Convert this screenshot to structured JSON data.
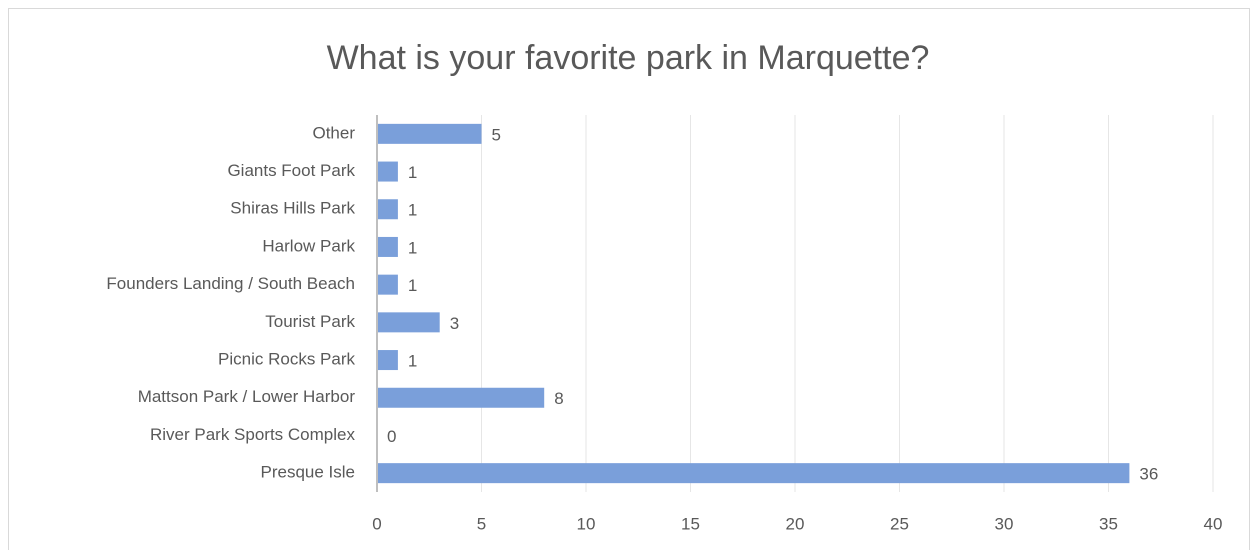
{
  "chart_data": {
    "type": "bar",
    "orientation": "horizontal",
    "title": "What is your favorite park in Marquette?",
    "categories": [
      "Other",
      "Giants Foot Park",
      "Shiras Hills Park",
      "Harlow Park",
      "Founders Landing / South Beach",
      "Tourist Park",
      "Picnic Rocks Park",
      "Mattson Park / Lower Harbor",
      "River Park Sports Complex",
      "Presque Isle"
    ],
    "values": [
      5,
      1,
      1,
      1,
      1,
      3,
      1,
      8,
      0,
      36
    ],
    "color": "#7a9fda",
    "xlim": [
      0,
      40
    ],
    "xticks": [
      0,
      5,
      10,
      15,
      20,
      25,
      30,
      35,
      40
    ],
    "grid": true
  }
}
